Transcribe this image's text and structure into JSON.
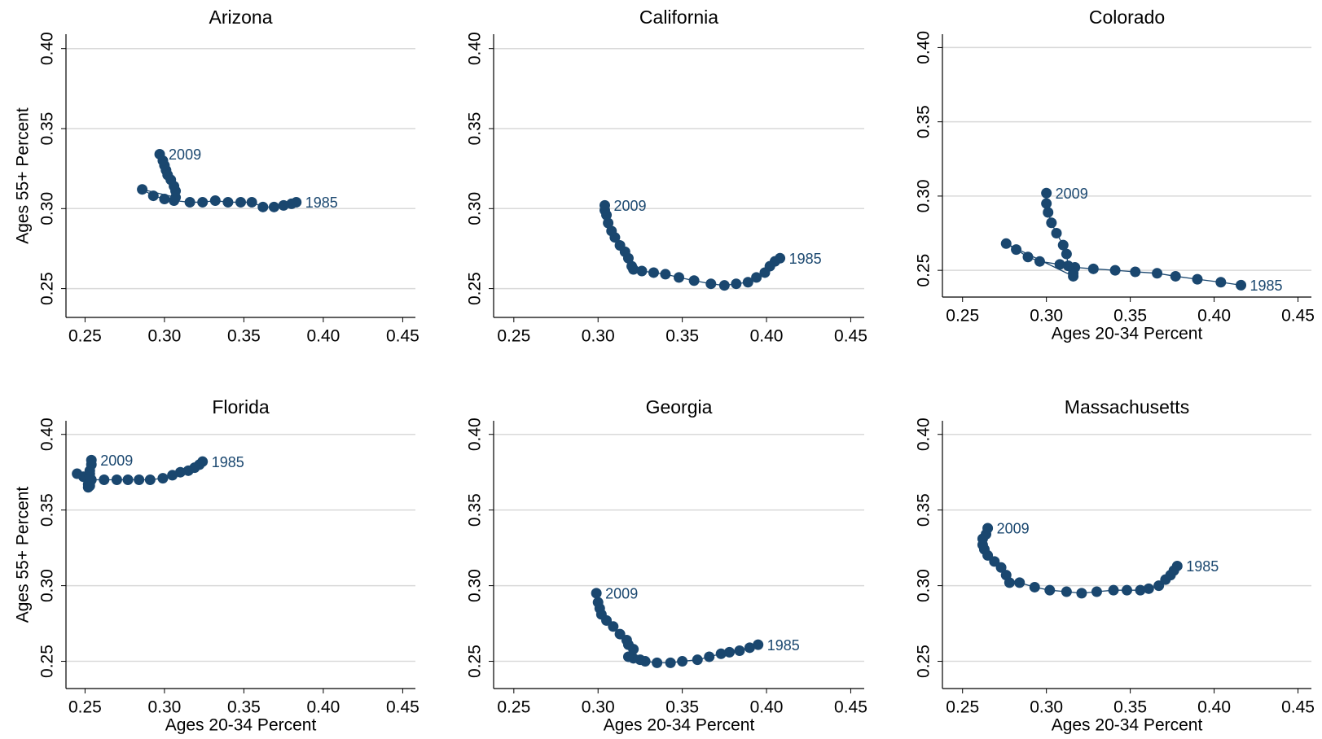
{
  "chart_data": [
    {
      "type": "scatter",
      "title": "Arizona",
      "ylabel": "Ages 55+ Percent",
      "color": "#1a476f",
      "grid": true,
      "connected": true,
      "start_label": "1985",
      "end_label": "2009",
      "x": [
        0.383,
        0.38,
        0.375,
        0.369,
        0.362,
        0.355,
        0.348,
        0.34,
        0.332,
        0.324,
        0.316,
        0.306,
        0.3,
        0.293,
        0.286,
        0.307,
        0.307,
        0.306,
        0.304,
        0.302,
        0.301,
        0.3,
        0.299,
        0.297
      ],
      "y": [
        0.304,
        0.303,
        0.302,
        0.301,
        0.301,
        0.304,
        0.304,
        0.304,
        0.305,
        0.304,
        0.304,
        0.305,
        0.306,
        0.308,
        0.312,
        0.307,
        0.311,
        0.314,
        0.318,
        0.321,
        0.324,
        0.327,
        0.33,
        0.334
      ],
      "xlim": [
        0.238,
        0.458
      ],
      "ylim": [
        0.232,
        0.409
      ],
      "xticks": [
        {
          "value": 0.25,
          "label": "0.25"
        },
        {
          "value": 0.3,
          "label": "0.30"
        },
        {
          "value": 0.35,
          "label": "0.35"
        },
        {
          "value": 0.4,
          "label": "0.40"
        },
        {
          "value": 0.45,
          "label": "0.45"
        }
      ],
      "yticks": [
        {
          "value": 0.25,
          "label": "0.25"
        },
        {
          "value": 0.3,
          "label": "0.30"
        },
        {
          "value": 0.35,
          "label": "0.35"
        },
        {
          "value": 0.4,
          "label": "0.40"
        }
      ]
    },
    {
      "type": "scatter",
      "title": "California",
      "color": "#1a476f",
      "grid": true,
      "connected": true,
      "start_label": "1985",
      "end_label": "2009",
      "x": [
        0.408,
        0.405,
        0.402,
        0.399,
        0.394,
        0.389,
        0.382,
        0.375,
        0.367,
        0.357,
        0.348,
        0.34,
        0.333,
        0.326,
        0.321,
        0.32,
        0.318,
        0.316,
        0.313,
        0.31,
        0.308,
        0.306,
        0.305,
        0.304,
        0.304
      ],
      "y": [
        0.269,
        0.267,
        0.264,
        0.26,
        0.257,
        0.254,
        0.253,
        0.252,
        0.253,
        0.255,
        0.257,
        0.259,
        0.26,
        0.261,
        0.262,
        0.264,
        0.269,
        0.273,
        0.277,
        0.282,
        0.286,
        0.291,
        0.296,
        0.299,
        0.302
      ],
      "xlim": [
        0.238,
        0.458
      ],
      "ylim": [
        0.232,
        0.409
      ],
      "xticks": [
        {
          "value": 0.25,
          "label": "0.25"
        },
        {
          "value": 0.3,
          "label": "0.30"
        },
        {
          "value": 0.35,
          "label": "0.35"
        },
        {
          "value": 0.4,
          "label": "0.40"
        },
        {
          "value": 0.45,
          "label": "0.45"
        }
      ],
      "yticks": [
        {
          "value": 0.25,
          "label": "0.25"
        },
        {
          "value": 0.3,
          "label": "0.30"
        },
        {
          "value": 0.35,
          "label": "0.35"
        },
        {
          "value": 0.4,
          "label": "0.40"
        }
      ]
    },
    {
      "type": "scatter",
      "title": "Colorado",
      "xlabel": "Ages 20-34 Percent",
      "color": "#1a476f",
      "grid": true,
      "connected": true,
      "start_label": "1985",
      "end_label": "2009",
      "x": [
        0.416,
        0.404,
        0.39,
        0.377,
        0.366,
        0.353,
        0.341,
        0.328,
        0.317,
        0.308,
        0.296,
        0.289,
        0.282,
        0.276,
        0.316,
        0.316,
        0.313,
        0.312,
        0.31,
        0.306,
        0.303,
        0.301,
        0.3,
        0.3
      ],
      "y": [
        0.24,
        0.242,
        0.244,
        0.246,
        0.248,
        0.249,
        0.25,
        0.251,
        0.252,
        0.254,
        0.256,
        0.259,
        0.264,
        0.268,
        0.246,
        0.248,
        0.253,
        0.261,
        0.267,
        0.275,
        0.282,
        0.289,
        0.295,
        0.302
      ],
      "xlim": [
        0.238,
        0.458
      ],
      "ylim": [
        0.232,
        0.409
      ],
      "xticks": [
        {
          "value": 0.25,
          "label": "0.25"
        },
        {
          "value": 0.3,
          "label": "0.30"
        },
        {
          "value": 0.35,
          "label": "0.35"
        },
        {
          "value": 0.4,
          "label": "0.40"
        },
        {
          "value": 0.45,
          "label": "0.45"
        }
      ],
      "yticks": [
        {
          "value": 0.25,
          "label": "0.25"
        },
        {
          "value": 0.3,
          "label": "0.30"
        },
        {
          "value": 0.35,
          "label": "0.35"
        },
        {
          "value": 0.4,
          "label": "0.40"
        }
      ]
    },
    {
      "type": "scatter",
      "title": "Florida",
      "xlabel": "Ages 20-34 Percent",
      "ylabel": "Ages 55+ Percent",
      "color": "#1a476f",
      "grid": true,
      "connected": true,
      "start_label": "1985",
      "end_label": "2009",
      "x": [
        0.324,
        0.322,
        0.319,
        0.315,
        0.31,
        0.305,
        0.299,
        0.291,
        0.284,
        0.277,
        0.27,
        0.262,
        0.254,
        0.249,
        0.245,
        0.253,
        0.252,
        0.252,
        0.252,
        0.253,
        0.253,
        0.253,
        0.253,
        0.254,
        0.254
      ],
      "y": [
        0.382,
        0.38,
        0.378,
        0.376,
        0.375,
        0.373,
        0.371,
        0.37,
        0.37,
        0.37,
        0.37,
        0.37,
        0.37,
        0.372,
        0.374,
        0.374,
        0.37,
        0.367,
        0.365,
        0.366,
        0.368,
        0.372,
        0.376,
        0.38,
        0.383
      ],
      "xlim": [
        0.238,
        0.458
      ],
      "ylim": [
        0.232,
        0.409
      ],
      "xticks": [
        {
          "value": 0.25,
          "label": "0.25"
        },
        {
          "value": 0.3,
          "label": "0.30"
        },
        {
          "value": 0.35,
          "label": "0.35"
        },
        {
          "value": 0.4,
          "label": "0.40"
        },
        {
          "value": 0.45,
          "label": "0.45"
        }
      ],
      "yticks": [
        {
          "value": 0.25,
          "label": "0.25"
        },
        {
          "value": 0.3,
          "label": "0.30"
        },
        {
          "value": 0.35,
          "label": "0.35"
        },
        {
          "value": 0.4,
          "label": "0.40"
        }
      ]
    },
    {
      "type": "scatter",
      "title": "Georgia",
      "xlabel": "Ages 20-34 Percent",
      "color": "#1a476f",
      "grid": true,
      "connected": true,
      "start_label": "1985",
      "end_label": "2009",
      "x": [
        0.395,
        0.39,
        0.384,
        0.378,
        0.373,
        0.366,
        0.359,
        0.35,
        0.343,
        0.335,
        0.328,
        0.325,
        0.321,
        0.318,
        0.321,
        0.318,
        0.317,
        0.313,
        0.309,
        0.305,
        0.302,
        0.301,
        0.3,
        0.299
      ],
      "y": [
        0.261,
        0.259,
        0.257,
        0.256,
        0.255,
        0.253,
        0.251,
        0.25,
        0.249,
        0.249,
        0.25,
        0.251,
        0.252,
        0.253,
        0.258,
        0.261,
        0.264,
        0.268,
        0.273,
        0.277,
        0.281,
        0.285,
        0.289,
        0.295
      ],
      "xlim": [
        0.238,
        0.458
      ],
      "ylim": [
        0.232,
        0.409
      ],
      "xticks": [
        {
          "value": 0.25,
          "label": "0.25"
        },
        {
          "value": 0.3,
          "label": "0.30"
        },
        {
          "value": 0.35,
          "label": "0.35"
        },
        {
          "value": 0.4,
          "label": "0.40"
        },
        {
          "value": 0.45,
          "label": "0.45"
        }
      ],
      "yticks": [
        {
          "value": 0.25,
          "label": "0.25"
        },
        {
          "value": 0.3,
          "label": "0.30"
        },
        {
          "value": 0.35,
          "label": "0.35"
        },
        {
          "value": 0.4,
          "label": "0.40"
        }
      ]
    },
    {
      "type": "scatter",
      "title": "Massachusetts",
      "xlabel": "Ages 20-34 Percent",
      "color": "#1a476f",
      "grid": true,
      "connected": true,
      "start_label": "1985",
      "end_label": "2009",
      "x": [
        0.378,
        0.376,
        0.374,
        0.371,
        0.367,
        0.361,
        0.356,
        0.348,
        0.34,
        0.33,
        0.321,
        0.312,
        0.302,
        0.293,
        0.284,
        0.278,
        0.276,
        0.273,
        0.269,
        0.265,
        0.263,
        0.262,
        0.262,
        0.264,
        0.265
      ],
      "y": [
        0.313,
        0.31,
        0.307,
        0.304,
        0.3,
        0.298,
        0.297,
        0.297,
        0.297,
        0.296,
        0.295,
        0.296,
        0.297,
        0.299,
        0.302,
        0.302,
        0.307,
        0.312,
        0.316,
        0.32,
        0.324,
        0.327,
        0.331,
        0.334,
        0.338
      ],
      "xlim": [
        0.238,
        0.458
      ],
      "ylim": [
        0.232,
        0.409
      ],
      "xticks": [
        {
          "value": 0.25,
          "label": "0.25"
        },
        {
          "value": 0.3,
          "label": "0.30"
        },
        {
          "value": 0.35,
          "label": "0.35"
        },
        {
          "value": 0.4,
          "label": "0.40"
        },
        {
          "value": 0.45,
          "label": "0.45"
        }
      ],
      "yticks": [
        {
          "value": 0.25,
          "label": "0.25"
        },
        {
          "value": 0.3,
          "label": "0.30"
        },
        {
          "value": 0.35,
          "label": "0.35"
        },
        {
          "value": 0.4,
          "label": "0.40"
        }
      ]
    }
  ]
}
